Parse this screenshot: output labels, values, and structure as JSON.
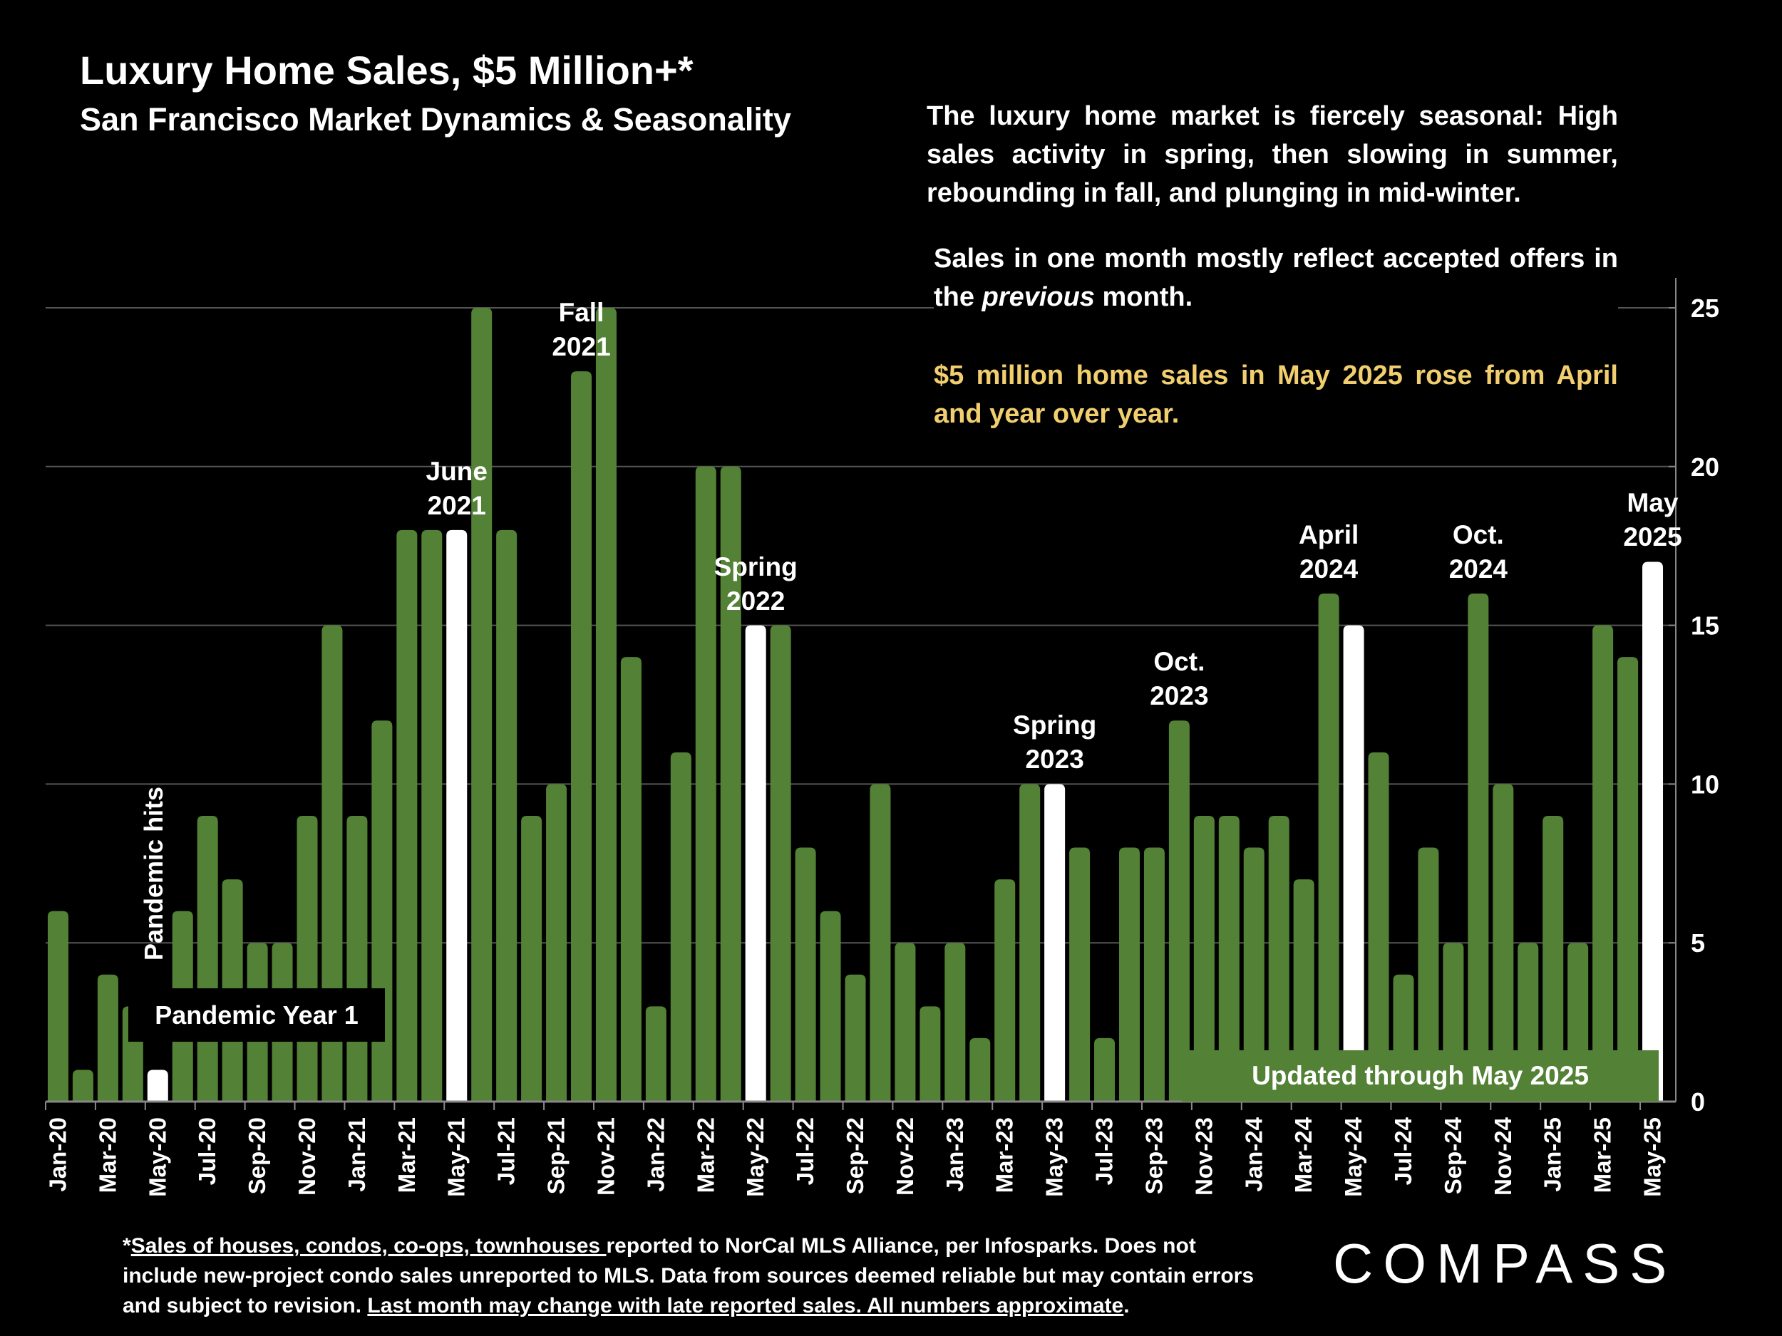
{
  "header": {
    "title": "Luxury Home Sales, $5 Million+*",
    "subtitle": "San Francisco Market Dynamics & Seasonality"
  },
  "commentary": {
    "p1": "The luxury home market is fiercely seasonal:  High sales activity in spring, then slowing in summer, rebounding in fall, and plunging in mid-winter.",
    "p2_before": "Sales in one month mostly reflect accepted offers in the ",
    "p2_italic": "previous",
    "p2_after": " month.",
    "p3": "$5 million home sales in May 2025 rose from April and year over year."
  },
  "labels": {
    "pandemic_hits": "Pandemic hits",
    "pandemic_year_1": "Pandemic Year 1",
    "updated": "Updated through May 2025"
  },
  "annotations": [
    {
      "month": "May-21",
      "line1": "June",
      "line2": "2021"
    },
    {
      "month": "Oct-21",
      "line1": "Fall",
      "line2": "2021"
    },
    {
      "month": "May-22",
      "line1": "Spring",
      "line2": "2022"
    },
    {
      "month": "May-23",
      "line1": "Spring",
      "line2": "2023"
    },
    {
      "month": "Oct-23",
      "line1": "Oct.",
      "line2": "2023"
    },
    {
      "month": "Apr-24",
      "line1": "April",
      "line2": "2024"
    },
    {
      "month": "Oct-24",
      "line1": "Oct.",
      "line2": "2024"
    },
    {
      "month": "May-25",
      "line1": "May",
      "line2": "2025"
    }
  ],
  "footer": {
    "star": "*",
    "link1": "Sales of houses, condos, co-ops, townhouses ",
    "text1": "reported to NorCal MLS Alliance, per Infosparks. Does not include new-project condo sales unreported to MLS. Data from sources deemed reliable but may contain errors and subject to revision. ",
    "link2": "Last month may change with late reported sales. All numbers approximate",
    "end": "."
  },
  "logo": "COMPASS",
  "colors": {
    "bar": "#538135",
    "highlight": "#ffffff",
    "accent_text": "#f2cf6e",
    "grid": "#555555"
  },
  "chart_data": {
    "type": "bar",
    "title": "Luxury Home Sales, $5 Million+*",
    "xlabel": "",
    "ylabel": "",
    "ylim": [
      0,
      25
    ],
    "yticks": [
      0,
      5,
      10,
      15,
      20,
      25
    ],
    "grid": true,
    "y_axis_position": "right",
    "categories": [
      "Jan-20",
      "Feb-20",
      "Mar-20",
      "Apr-20",
      "May-20",
      "Jun-20",
      "Jul-20",
      "Aug-20",
      "Sep-20",
      "Oct-20",
      "Nov-20",
      "Dec-20",
      "Jan-21",
      "Feb-21",
      "Mar-21",
      "Apr-21",
      "May-21",
      "Jun-21",
      "Jul-21",
      "Aug-21",
      "Sep-21",
      "Oct-21",
      "Nov-21",
      "Dec-21",
      "Jan-22",
      "Feb-22",
      "Mar-22",
      "Apr-22",
      "May-22",
      "Jun-22",
      "Jul-22",
      "Aug-22",
      "Sep-22",
      "Oct-22",
      "Nov-22",
      "Dec-22",
      "Jan-23",
      "Feb-23",
      "Mar-23",
      "Apr-23",
      "May-23",
      "Jun-23",
      "Jul-23",
      "Aug-23",
      "Sep-23",
      "Oct-23",
      "Nov-23",
      "Dec-23",
      "Jan-24",
      "Feb-24",
      "Mar-24",
      "Apr-24",
      "May-24",
      "Jun-24",
      "Jul-24",
      "Aug-24",
      "Sep-24",
      "Oct-24",
      "Nov-24",
      "Dec-24",
      "Jan-25",
      "Feb-25",
      "Mar-25",
      "Apr-25",
      "May-25"
    ],
    "values": [
      6,
      1,
      4,
      3,
      1,
      6,
      9,
      7,
      5,
      5,
      9,
      15,
      9,
      12,
      18,
      18,
      18,
      25,
      18,
      9,
      10,
      23,
      25,
      14,
      3,
      11,
      20,
      20,
      15,
      15,
      8,
      6,
      4,
      10,
      5,
      3,
      5,
      2,
      7,
      10,
      10,
      8,
      2,
      8,
      8,
      12,
      9,
      9,
      8,
      9,
      7,
      16,
      15,
      11,
      4,
      8,
      5,
      16,
      10,
      5,
      9,
      5,
      15,
      14,
      17
    ],
    "highlighted": [
      "May-20",
      "May-21",
      "May-22",
      "May-23",
      "May-24",
      "May-25"
    ]
  }
}
